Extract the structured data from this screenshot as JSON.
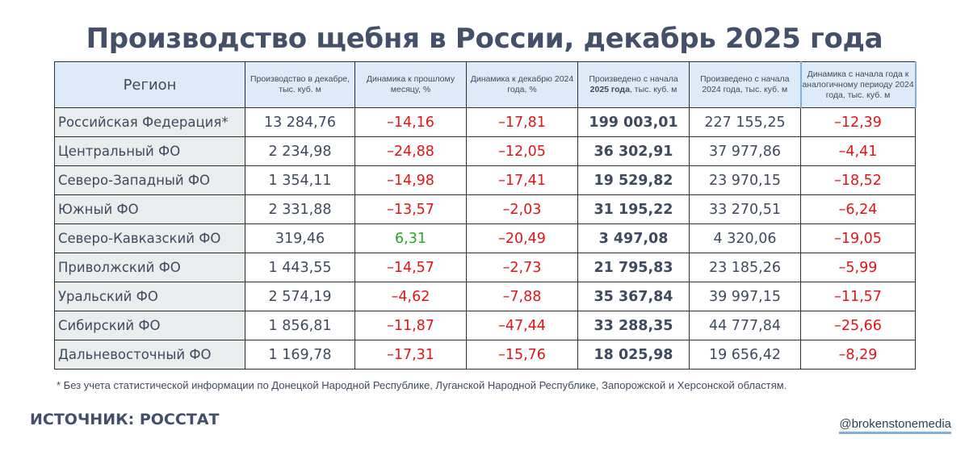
{
  "title": "Производство щебня в России, декабрь 2025 года",
  "table": {
    "headers": {
      "region": "Регион",
      "col1": "Производство в декабре, тыс. куб. м",
      "col2": "Динамика к прошлому месяцу, %",
      "col3": "Динамика к декабрю 2024 года, %",
      "col4_pre": "Произведено с начала",
      "col4_bold": "2025 года",
      "col4_post": ", тыс. куб. м",
      "col5": "Произведено с начала 2024 года, тыс. куб. м",
      "col6": "Динамика с начала года к аналогичному периоду 2024 года, тыс. куб. м"
    },
    "rows": [
      {
        "region": "Российская Федерация*",
        "prod_dec": "13 284,76",
        "mom": "–14,16",
        "yoy": "–17,81",
        "ytd_2025": "199 003,01",
        "ytd_2024": "227 155,25",
        "ytd_change": "–12,39"
      },
      {
        "region": "Центральный ФО",
        "prod_dec": "2 234,98",
        "mom": "–24,88",
        "yoy": "–12,05",
        "ytd_2025": "36 302,91",
        "ytd_2024": "37 977,86",
        "ytd_change": "–4,41"
      },
      {
        "region": "Северо-Западный ФО",
        "prod_dec": "1 354,11",
        "mom": "–14,98",
        "yoy": "–17,41",
        "ytd_2025": "19 529,82",
        "ytd_2024": "23 970,15",
        "ytd_change": "–18,52"
      },
      {
        "region": "Южный ФО",
        "prod_dec": "2 331,88",
        "mom": "–13,57",
        "yoy": "–2,03",
        "ytd_2025": "31 195,22",
        "ytd_2024": "33 270,51",
        "ytd_change": "–6,24"
      },
      {
        "region": "Северо-Кавказский ФО",
        "prod_dec": "319,46",
        "mom": "6,31",
        "yoy": "–20,49",
        "ytd_2025": "3 497,08",
        "ytd_2024": "4 320,06",
        "ytd_change": "–19,05"
      },
      {
        "region": "Приволжский ФО",
        "prod_dec": "1 443,55",
        "mom": "–14,57",
        "yoy": "–2,73",
        "ytd_2025": "21 795,83",
        "ytd_2024": "23 185,26",
        "ytd_change": "–5,99"
      },
      {
        "region": "Уральский ФО",
        "prod_dec": "2 574,19",
        "mom": "–4,62",
        "yoy": "–7,88",
        "ytd_2025": "35 367,84",
        "ytd_2024": "39 997,15",
        "ytd_change": "–11,57"
      },
      {
        "region": "Сибирский ФО",
        "prod_dec": "1 856,81",
        "mom": "–11,87",
        "yoy": "–47,44",
        "ytd_2025": "33 288,35",
        "ytd_2024": "44 777,84",
        "ytd_change": "–25,66"
      },
      {
        "region": "Дальневосточный ФО",
        "prod_dec": "1 169,78",
        "mom": "–17,31",
        "yoy": "–15,76",
        "ytd_2025": "18 025,98",
        "ytd_2024": "19 656,42",
        "ytd_change": "–8,29"
      }
    ]
  },
  "footnote": "* Без учета статистической информации по Донецкой Народной Республике, Луганской Народной Республике, Запорожской и Херсонской областям.",
  "source": "ИСТОЧНИК: РОССТАТ",
  "handle": "@brokenstonemedia",
  "colors": {
    "negative": "#e01515",
    "positive": "#2aa52a",
    "header_bg": "#ddeaf7",
    "region_bg": "#eaedee",
    "text": "#3f4a5e"
  }
}
